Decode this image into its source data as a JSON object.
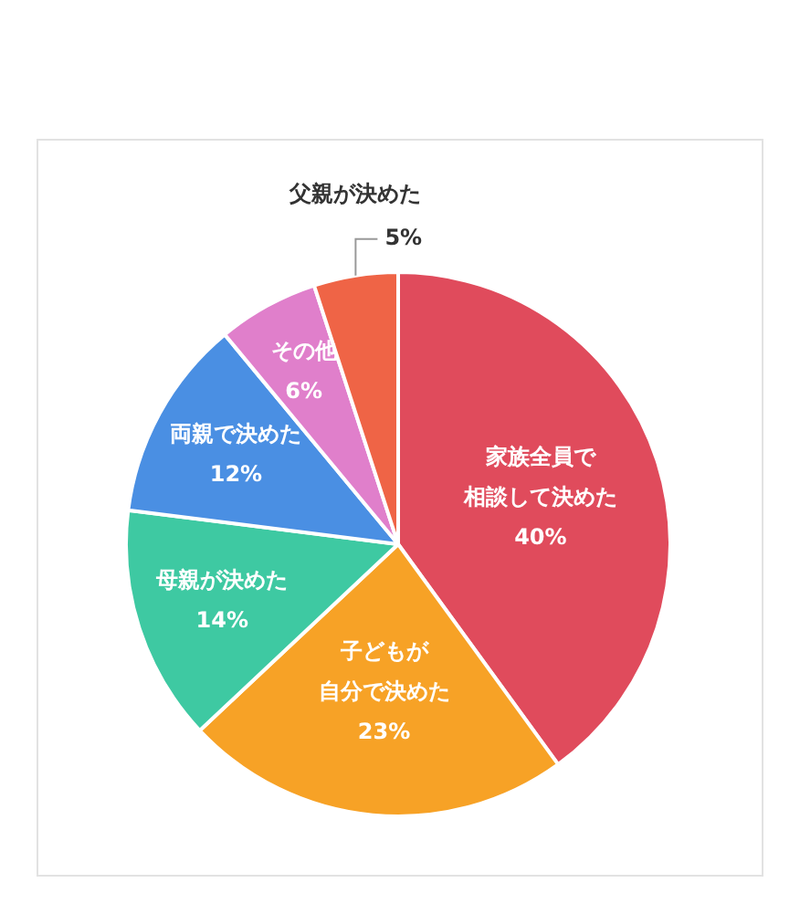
{
  "chart_data": {
    "type": "pie",
    "categories": [
      "家族全員で相談して決めた",
      "子どもが自分で決めた",
      "母親が決めた",
      "両親で決めた",
      "その他",
      "父親が決めた"
    ],
    "values": [
      40,
      23,
      14,
      12,
      6,
      5
    ],
    "colors": [
      "#e04b5c",
      "#f7a226",
      "#3ec9a2",
      "#4a8fe3",
      "#e07fcb",
      "#ef6446"
    ],
    "value_labels": [
      "40%",
      "23%",
      "14%",
      "12%",
      "6%",
      "5%"
    ],
    "legend": false
  }
}
